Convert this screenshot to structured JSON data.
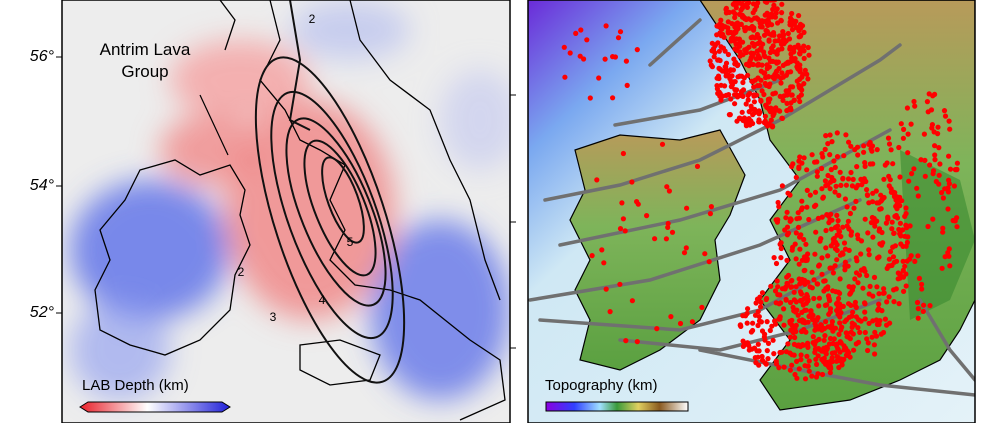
{
  "left_panel": {
    "lat_labels": [
      "56°",
      "54°",
      "52°"
    ],
    "annotation": [
      "Antrim Lava",
      "Group"
    ],
    "contour_labels": [
      "2",
      "2",
      "3",
      "4",
      "5"
    ],
    "legend_title": "LAB Depth (km)"
  },
  "right_panel": {
    "legend_title": "Topography (km)"
  }
}
